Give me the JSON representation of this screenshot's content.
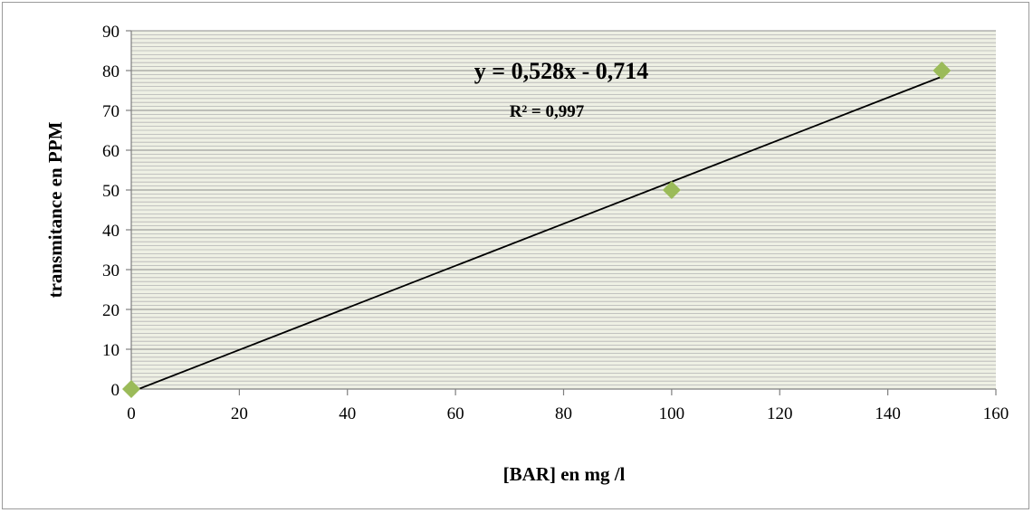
{
  "chart_data": {
    "type": "scatter",
    "title": "",
    "xlabel": "[BAR] en mg /l",
    "ylabel": "transmitance en  PPM",
    "xlim": [
      0,
      160
    ],
    "ylim": [
      0,
      90
    ],
    "x_ticks": [
      0,
      20,
      40,
      60,
      80,
      100,
      120,
      140,
      160
    ],
    "y_ticks": [
      0,
      10,
      20,
      30,
      40,
      50,
      60,
      70,
      80,
      90
    ],
    "grid": true,
    "legend": "none",
    "series": [
      {
        "x": [
          0,
          100,
          150
        ],
        "y": [
          0,
          50,
          80
        ],
        "marker": "diamond",
        "color": "#9bbb59"
      }
    ],
    "trendline": {
      "type": "linear",
      "slope": 0.528,
      "intercept": -0.714,
      "equation": "y = 0,528x - 0,714",
      "r_squared": "R² = 0,997",
      "color": "#000000"
    },
    "plot_background": "#eef0e4",
    "gridline_color": "#b4b4b4"
  }
}
